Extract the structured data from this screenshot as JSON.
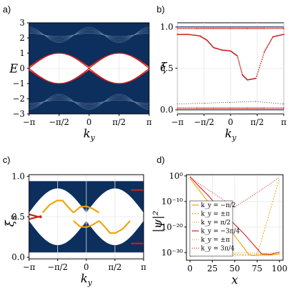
{
  "colors": {
    "band": "#0d2f5e",
    "edge": "#cc1f1f",
    "gold": "#f0a30a",
    "purple": "#7b3fa0",
    "grid": "#e6e6e6"
  },
  "chart_data": [
    {
      "panel": "a)",
      "type": "line",
      "xlabel": "k_y",
      "ylabel": "E",
      "xlim": [
        -3.1416,
        3.1416
      ],
      "ylim": [
        -3,
        3
      ],
      "xtick_labels": [
        "−π",
        "−π/2",
        "0",
        "π/2",
        "π"
      ],
      "ytick_labels": [
        "3",
        "2",
        "1",
        "0",
        "−1",
        "−2",
        "−3"
      ],
      "grid": true,
      "bulk_band_upper": {
        "lower_edge": "1 + cos²(k_y)·0.9 approx",
        "x": [
          -3.14,
          -2.36,
          -1.57,
          -0.79,
          0,
          0.79,
          1.57,
          2.36,
          3.14
        ],
        "lower_y": [
          0.1,
          0.55,
          1.0,
          0.55,
          0.1,
          0.55,
          1.0,
          0.55,
          0.1
        ],
        "upper_y": [
          3.0,
          3.0,
          2.85,
          3.0,
          3.0,
          3.0,
          2.85,
          3.0,
          3.0
        ]
      },
      "edge_states": {
        "x": [
          -3.14,
          -2.36,
          -1.57,
          -0.79,
          0,
          0.79,
          1.57,
          2.36,
          3.14
        ],
        "y_pos": [
          0.0,
          0.55,
          1.0,
          0.55,
          0.0,
          0.55,
          1.0,
          0.55,
          0.0
        ]
      }
    },
    {
      "panel": "b)",
      "type": "scatter",
      "xlabel": "k_y",
      "ylabel": "ξ",
      "xlim": [
        -3.1416,
        3.1416
      ],
      "ylim": [
        -0.05,
        1.05
      ],
      "xtick_labels": [
        "−π",
        "−π/2",
        "0",
        "π/2",
        "π"
      ],
      "ytick_labels": [
        "1.0",
        "0.5",
        "0.0"
      ],
      "grid": true,
      "series": [
        {
          "x": [
            -3.14,
            -2.5,
            -1.8,
            -1.4,
            -1.0,
            -0.5,
            0,
            0.4,
            0.7,
            1.0,
            1.5,
            2.0,
            2.5,
            3.14
          ],
          "y": [
            0.91,
            0.91,
            0.89,
            0.84,
            0.75,
            0.72,
            0.71,
            0.65,
            0.42,
            0.36,
            0.38,
            0.7,
            0.88,
            0.91
          ]
        },
        {
          "x": [
            -3.14,
            -2.0,
            -1.0,
            0,
            1.0,
            2.0,
            3.14
          ],
          "y": [
            0.98,
            0.98,
            0.98,
            0.98,
            0.98,
            0.98,
            0.98
          ]
        },
        {
          "x": [
            -3.14,
            -2.0,
            -1.0,
            0,
            1.0,
            2.0,
            3.14
          ],
          "y": [
            0.02,
            0.02,
            0.02,
            0.02,
            0.02,
            0.02,
            0.02
          ]
        },
        {
          "x": [
            -3.14,
            -1.5,
            0,
            1.5,
            3.14
          ],
          "y": [
            0.07,
            0.08,
            0.09,
            0.1,
            0.07
          ]
        }
      ]
    },
    {
      "panel": "c)",
      "type": "scatter",
      "xlabel": "k_y",
      "ylabel": "ξ_S",
      "xlim": [
        -3.1416,
        3.1416
      ],
      "ylim": [
        -0.02,
        1.02
      ],
      "xtick_labels": [
        "−π",
        "−π/2",
        "0",
        "π/2",
        "π"
      ],
      "ytick_labels": [
        "1.0",
        "0.5",
        "0.0"
      ],
      "grid": true,
      "series": [
        {
          "x": [
            -2.4,
            -2.0,
            -1.6,
            -1.3,
            -1.0,
            -0.7
          ],
          "y": [
            0.55,
            0.65,
            0.7,
            0.7,
            0.62,
            0.55
          ]
        },
        {
          "x": [
            0.7,
            1.0,
            1.3,
            1.6,
            2.0,
            2.4
          ],
          "y": [
            0.45,
            0.38,
            0.3,
            0.3,
            0.35,
            0.45
          ]
        },
        {
          "x": [
            -0.7,
            -0.35,
            0,
            0.35,
            0.7
          ],
          "y": [
            0.55,
            0.62,
            0.63,
            0.6,
            0.55
          ]
        },
        {
          "x": [
            -0.7,
            -0.35,
            0,
            0.35,
            0.7
          ],
          "y": [
            0.45,
            0.38,
            0.37,
            0.4,
            0.45
          ]
        },
        {
          "x": [
            -3.14,
            -2.8,
            -2.45
          ],
          "y": [
            0.47,
            0.49,
            0.51
          ]
        },
        {
          "x": [
            2.45,
            2.8,
            3.14
          ],
          "y": [
            0.83,
            0.83,
            0.83
          ]
        },
        {
          "x": [
            -3.14,
            -2.8,
            -2.45
          ],
          "y": [
            0.53,
            0.51,
            0.49
          ]
        },
        {
          "x": [
            2.45,
            2.8,
            3.14
          ],
          "y": [
            0.17,
            0.17,
            0.17
          ]
        }
      ]
    },
    {
      "panel": "d)",
      "type": "line",
      "xlabel": "x",
      "ylabel": "|ψ|²",
      "xlim": [
        -4,
        104
      ],
      "ylim_log10": [
        -33,
        0.5
      ],
      "xtick_labels": [
        "0",
        "25",
        "50",
        "75",
        "100"
      ],
      "ytick_labels": [
        "10⁰",
        "10⁻¹⁰",
        "10⁻²⁰",
        "10⁻³⁰"
      ],
      "grid": true,
      "legend": {
        "placement": "bottom-left",
        "entries": [
          "k_y = −π/2",
          "k_y = ±π",
          "k_y = π/2",
          "k_y = −3π/4",
          "k_y = ±π",
          "k_y = 3π/4"
        ]
      },
      "series": [
        {
          "x": [
            0,
            10,
            20,
            30,
            40,
            50,
            60,
            65,
            70,
            80,
            90,
            100
          ],
          "log10y": [
            -1,
            -5.5,
            -10,
            -14.5,
            -19,
            -23.5,
            -28,
            -30.5,
            -31.2,
            -30.8,
            -31.0,
            -30.5
          ]
        },
        {
          "x": [
            0,
            10,
            20,
            30,
            40,
            50,
            60,
            70,
            75,
            80,
            85,
            90,
            95,
            100
          ],
          "log10y": [
            -31.5,
            -31.2,
            -30.8,
            -31.0,
            -31.3,
            -30.7,
            -31.0,
            -31.1,
            -30.5,
            -25,
            -19,
            -13,
            -7,
            -1
          ]
        },
        {
          "x": [
            0,
            10,
            20,
            30,
            40,
            50,
            60,
            70,
            80,
            90,
            100
          ],
          "log10y": [
            -31.5,
            -31.0,
            -30.6,
            -31.2,
            -31.0,
            -31.3,
            -30.8,
            -31.0,
            -31.2,
            -31.0,
            -30.7
          ]
        },
        {
          "x": [
            0,
            10,
            20,
            30,
            40,
            50,
            60,
            70,
            75,
            80,
            90,
            100
          ],
          "log10y": [
            -0.3,
            -4,
            -7.5,
            -11.5,
            -15,
            -19,
            -22.5,
            -26.5,
            -28.5,
            -30.5,
            -30.7,
            -29.8
          ]
        },
        {
          "x": [
            0,
            10,
            20,
            30,
            40,
            50,
            60,
            70,
            80,
            90,
            100
          ],
          "log10y": [
            -29.8,
            -30.1,
            -30.3,
            -30.0,
            -30.2,
            -30.4,
            -30.1,
            -30.3,
            -30.5,
            -30.2,
            -30.0
          ]
        },
        {
          "x": [
            0,
            12,
            25,
            38,
            50,
            62,
            75,
            88,
            100
          ],
          "log10y": [
            -0.5,
            -3.5,
            -6.5,
            -9.5,
            -12.2,
            -9.5,
            -6.5,
            -3.5,
            -0.5
          ]
        }
      ]
    }
  ]
}
